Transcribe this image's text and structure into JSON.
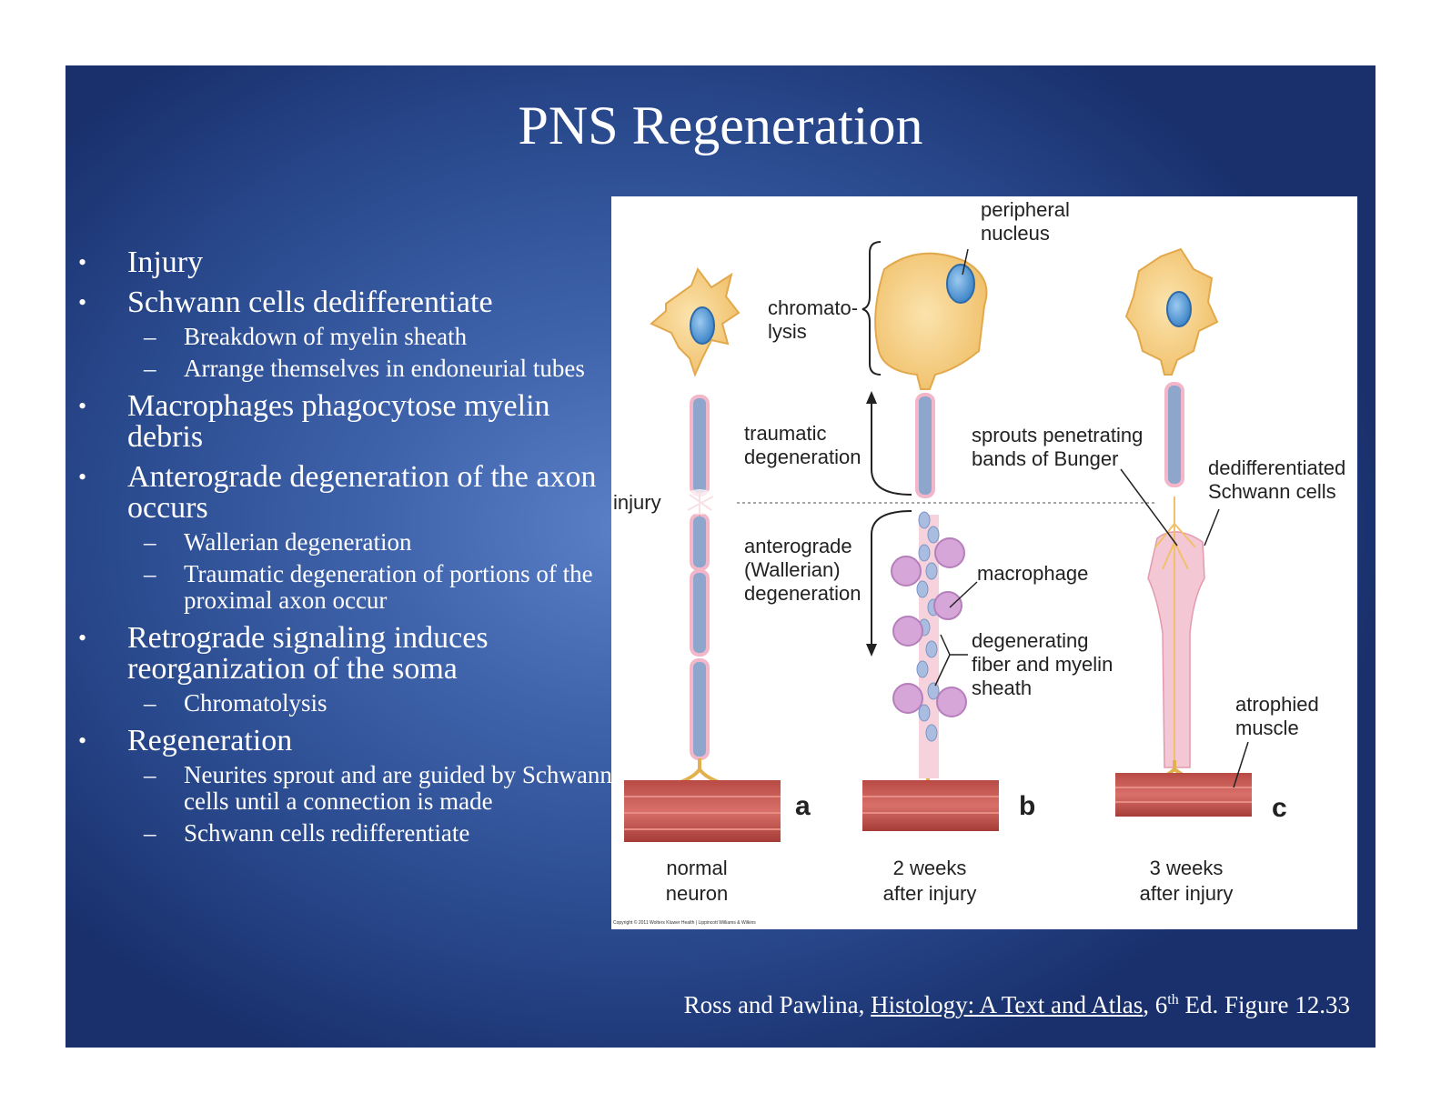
{
  "slide": {
    "title": "PNS Regeneration",
    "bullets": [
      {
        "text": "Injury",
        "subs": []
      },
      {
        "text": "Schwann cells dedifferentiate",
        "subs": [
          "Breakdown of myelin sheath",
          "Arrange themselves in endoneurial tubes"
        ]
      },
      {
        "text": "Macrophages phagocytose myelin debris",
        "subs": []
      },
      {
        "text": "Anterograde degeneration of the axon occurs",
        "subs": [
          "Wallerian degeneration",
          "Traumatic degeneration of portions of the proximal axon occur"
        ]
      },
      {
        "text": "Retrograde signaling induces reorganization of the soma",
        "subs": [
          "Chromatolysis"
        ]
      },
      {
        "text": "Regeneration",
        "subs": [
          "Neurites sprout and are guided by Schwann cells until a connection is made",
          "Schwann cells redifferentiate"
        ]
      }
    ],
    "bullet_symbol": "•",
    "dash_symbol": "–"
  },
  "figure": {
    "labels": {
      "peripheral_nucleus_1": "peripheral",
      "peripheral_nucleus_2": "nucleus",
      "chromatolysis_1": "chromato-",
      "chromatolysis_2": "lysis",
      "traumatic_1": "traumatic",
      "traumatic_2": "degeneration",
      "injury": "injury",
      "anterograde_1": "anterograde",
      "anterograde_2": "(Wallerian)",
      "anterograde_3": "degeneration",
      "sprouts_1": "sprouts penetrating",
      "sprouts_2": "bands of Bunger",
      "dediff_1": "dedifferentiated",
      "dediff_2": "Schwann cells",
      "macrophage": "macrophage",
      "degenerating_1": "degenerating",
      "degenerating_2": "fiber and myelin",
      "degenerating_3": "sheath",
      "atrophied_1": "atrophied",
      "atrophied_2": "muscle"
    },
    "panels": [
      {
        "letter": "a",
        "caption_1": "normal",
        "caption_2": "neuron"
      },
      {
        "letter": "b",
        "caption_1": "2 weeks",
        "caption_2": "after injury"
      },
      {
        "letter": "c",
        "caption_1": "3 weeks",
        "caption_2": "after injury"
      }
    ],
    "copyright": "Copyright © 2011 Wolters Kluwer Health | Lippincott Williams & Wilkins",
    "colors": {
      "cell_body": "#f5cf82",
      "nucleus": "#5aa0dc",
      "myelin": "#8fa6cc",
      "muscle": "#c2504a",
      "macrophage": "#d6a6d8"
    }
  },
  "citation": {
    "authors": "Ross and Pawlina, ",
    "book": "Histology: A Text and Atlas",
    "edition_num": ", 6",
    "edition_sup": "th",
    "rest": " Ed. Figure 12.33"
  }
}
